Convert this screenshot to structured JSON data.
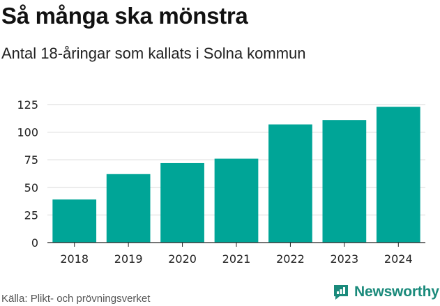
{
  "header": {
    "title": "Så många ska mönstra",
    "subtitle": "Antal 18-åringar som kallats i Solna kommun"
  },
  "footer": {
    "source": "Källa: Plikt- och prövningsverket",
    "brand": "Newsworthy"
  },
  "colors": {
    "bar": "#00a597",
    "grid": "#d9d9d9",
    "axis": "#222222",
    "brand": "#1a8a7b"
  },
  "chart_data": {
    "type": "bar",
    "title": "Så många ska mönstra",
    "subtitle": "Antal 18-åringar som kallats i Solna kommun",
    "xlabel": "",
    "ylabel": "",
    "categories": [
      "2018",
      "2019",
      "2020",
      "2021",
      "2022",
      "2023",
      "2024"
    ],
    "values": [
      39,
      62,
      72,
      76,
      107,
      111,
      123
    ],
    "ylim": [
      0,
      125
    ],
    "yticks": [
      0,
      25,
      50,
      75,
      100,
      125
    ],
    "grid": true,
    "legend": "none"
  }
}
